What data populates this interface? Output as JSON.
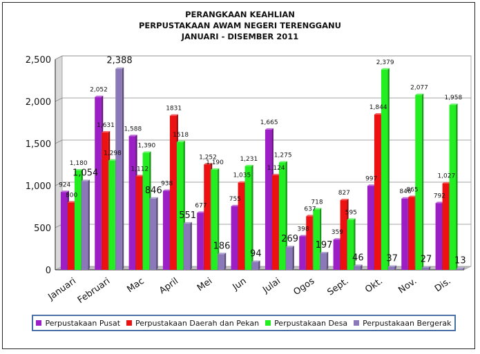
{
  "chart_data": {
    "type": "bar",
    "title_lines": [
      "PERANGKAAN KEAHLIAN",
      "PERPUSTAKAAN AWAM NEGERI TERENGGANU",
      "JANUARI - DISEMBER 2011"
    ],
    "categories": [
      "Januari",
      "Februari",
      "Mac",
      "April",
      "Mei",
      "Jun",
      "Julai",
      "Ogos",
      "Sept.",
      "Okt.",
      "Nov.",
      "Dis."
    ],
    "ylim": [
      0,
      2500
    ],
    "yticks": [
      "0",
      "500",
      "1,000",
      "1,500",
      "2,000",
      "2,500"
    ],
    "ytick_values": [
      0,
      500,
      1000,
      1500,
      2000,
      2500
    ],
    "grid": true,
    "legend_position": "bottom",
    "series": [
      {
        "name": "Perpustakaan Pusat",
        "color": "#9b1fc4",
        "values": [
          924,
          2052,
          1588,
          938,
          677,
          755,
          1665,
          398,
          359,
          997,
          846,
          792
        ],
        "labels": [
          "924",
          "2,052",
          "1,588",
          "938",
          "677",
          "755",
          "1,665",
          "398",
          "359",
          "997",
          "846",
          "792"
        ]
      },
      {
        "name": "Perpustakaan Daerah dan Pekan",
        "color": "#ee1111",
        "values": [
          800,
          1631,
          1112,
          1831,
          1252,
          1035,
          1124,
          637,
          827,
          1844,
          865,
          1027
        ],
        "labels": [
          "800",
          "1,631",
          "1,112",
          "1831",
          "1,252",
          "1,035",
          "1,124",
          "637",
          "827",
          "1,844",
          "865",
          "1,027"
        ]
      },
      {
        "name": "Perpustakaan Desa",
        "color": "#22ee22",
        "values": [
          1180,
          1298,
          1390,
          1518,
          1190,
          1231,
          1275,
          718,
          595,
          2379,
          2077,
          1958
        ],
        "labels": [
          "1,180",
          "1,298",
          "1,390",
          "1518",
          "1,190",
          "1,231",
          "1,275",
          "718",
          "595",
          "2,379",
          "2,077",
          "1,958"
        ]
      },
      {
        "name": "Perpustakaan Bergerak",
        "color": "#8a78b8",
        "values": [
          1054,
          2388,
          846,
          551,
          186,
          94,
          269,
          197,
          46,
          37,
          27,
          13
        ],
        "labels": [
          "1,054",
          "2,388",
          "846",
          "551",
          "186",
          "94",
          "269",
          "197",
          "46",
          "37",
          "27",
          "13"
        ]
      }
    ]
  }
}
